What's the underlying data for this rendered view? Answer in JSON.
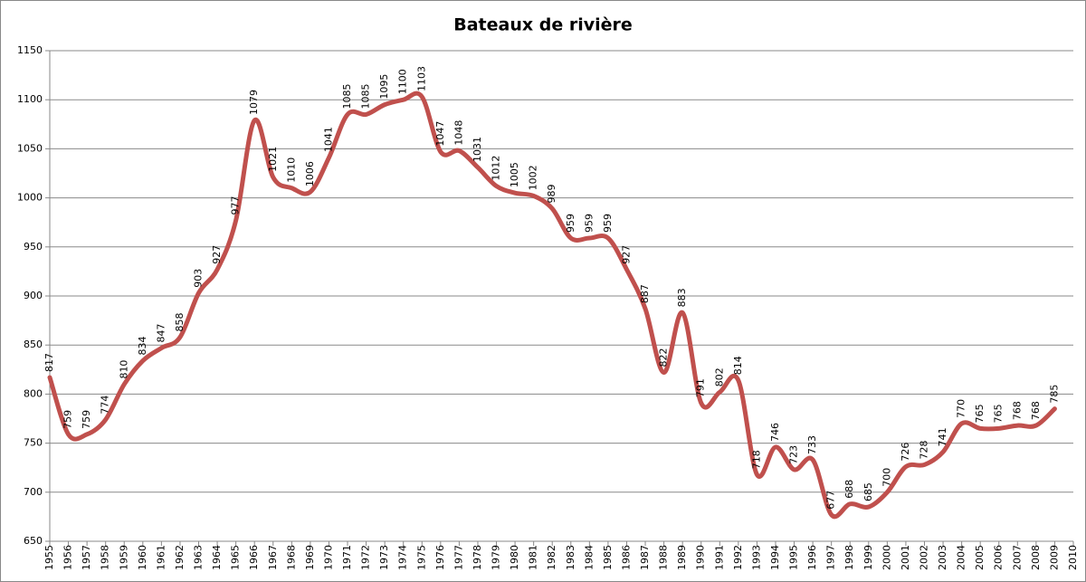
{
  "chart_data": {
    "type": "line",
    "title": "Bateaux de rivière",
    "categories": [
      "1955",
      "1956",
      "1957",
      "1958",
      "1959",
      "1960",
      "1961",
      "1962",
      "1963",
      "1964",
      "1965",
      "1966",
      "1967",
      "1968",
      "1969",
      "1970",
      "1971",
      "1972",
      "1973",
      "1974",
      "1975",
      "1976",
      "1977",
      "1978",
      "1979",
      "1980",
      "1981",
      "1982",
      "1983",
      "1984",
      "1985",
      "1986",
      "1987",
      "1988",
      "1989",
      "1990",
      "1991",
      "1992",
      "1993",
      "1994",
      "1995",
      "1996",
      "1997",
      "1998",
      "1999",
      "2000",
      "2001",
      "2002",
      "2003",
      "2004",
      "2005",
      "2006",
      "2007",
      "2008",
      "2009",
      "2010"
    ],
    "values": [
      817,
      759,
      759,
      774,
      810,
      834,
      847,
      858,
      903,
      927,
      977,
      1079,
      1021,
      1010,
      1006,
      1041,
      1085,
      1085,
      1095,
      1100,
      1103,
      1047,
      1048,
      1031,
      1012,
      1005,
      1002,
      989,
      959,
      959,
      959,
      927,
      887,
      822,
      883,
      791,
      802,
      814,
      718,
      746,
      723,
      733,
      677,
      688,
      685,
      700,
      726,
      728,
      741,
      770,
      765,
      765,
      768,
      768,
      785,
      null
    ],
    "color": "#c0504d",
    "ylim": [
      650,
      1150
    ],
    "yticks": [
      650,
      700,
      750,
      800,
      850,
      900,
      950,
      1000,
      1050,
      1100,
      1150
    ],
    "grid": true
  }
}
